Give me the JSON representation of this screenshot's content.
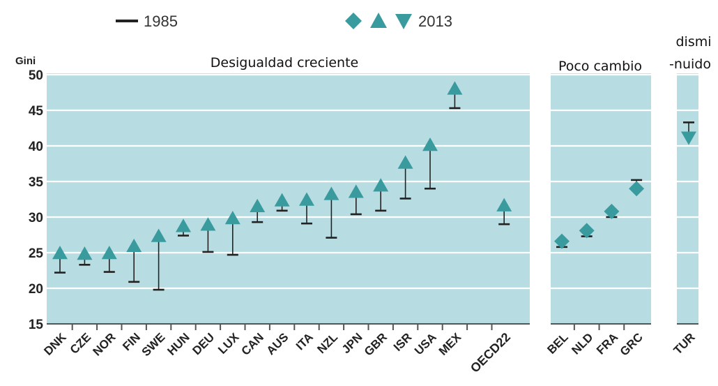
{
  "legend": {
    "label_1985": "1985",
    "label_2013": "2013",
    "marker_color": "#3a9b9f",
    "line_color": "#222222"
  },
  "chart_data": {
    "type": "scatter",
    "ylabel": "Gini",
    "ylim": [
      15,
      50
    ],
    "yticks": [
      15,
      20,
      25,
      30,
      35,
      40,
      45,
      50
    ],
    "panel_color": "#b7dde2",
    "grid": true,
    "series_names": [
      "1985",
      "2013"
    ],
    "panels": [
      {
        "title": "Desigualdad creciente",
        "countries": [
          {
            "code": "DNK",
            "v1985": 22.2,
            "v2013": 24.9,
            "marker": "up"
          },
          {
            "code": "CZE",
            "v1985": 23.3,
            "v2013": 24.8,
            "marker": "up"
          },
          {
            "code": "NOR",
            "v1985": 22.3,
            "v2013": 24.9,
            "marker": "up"
          },
          {
            "code": "FIN",
            "v1985": 20.9,
            "v2013": 25.9,
            "marker": "up"
          },
          {
            "code": "SWE",
            "v1985": 19.8,
            "v2013": 27.3,
            "marker": "up"
          },
          {
            "code": "HUN",
            "v1985": 27.4,
            "v2013": 28.7,
            "marker": "up"
          },
          {
            "code": "DEU",
            "v1985": 25.1,
            "v2013": 28.9,
            "marker": "up"
          },
          {
            "code": "LUX",
            "v1985": 24.7,
            "v2013": 29.8,
            "marker": "up"
          },
          {
            "code": "CAN",
            "v1985": 29.3,
            "v2013": 31.5,
            "marker": "up"
          },
          {
            "code": "AUS",
            "v1985": 30.9,
            "v2013": 32.3,
            "marker": "up"
          },
          {
            "code": "ITA",
            "v1985": 29.1,
            "v2013": 32.4,
            "marker": "up"
          },
          {
            "code": "NZL",
            "v1985": 27.1,
            "v2013": 33.2,
            "marker": "up"
          },
          {
            "code": "JPN",
            "v1985": 30.4,
            "v2013": 33.5,
            "marker": "up"
          },
          {
            "code": "GBR",
            "v1985": 30.9,
            "v2013": 34.4,
            "marker": "up"
          },
          {
            "code": "ISR",
            "v1985": 32.6,
            "v2013": 37.6,
            "marker": "up"
          },
          {
            "code": "USA",
            "v1985": 34.0,
            "v2013": 40.1,
            "marker": "up"
          },
          {
            "code": "MEX",
            "v1985": 45.3,
            "v2013": 48.0,
            "marker": "up"
          },
          {
            "code": "",
            "v1985": null,
            "v2013": null,
            "marker": "none"
          },
          {
            "code": "OECD22",
            "v1985": 29.0,
            "v2013": 31.6,
            "marker": "up",
            "bold": true
          }
        ]
      },
      {
        "title": "Poco cambio",
        "countries": [
          {
            "code": "BEL",
            "v1985": 25.8,
            "v2013": 26.6,
            "marker": "diamond"
          },
          {
            "code": "NLD",
            "v1985": 27.3,
            "v2013": 28.1,
            "marker": "diamond"
          },
          {
            "code": "FRA",
            "v1985": 30.0,
            "v2013": 30.8,
            "marker": "diamond"
          },
          {
            "code": "GRC",
            "v1985": 35.2,
            "v2013": 34.0,
            "marker": "diamond"
          }
        ]
      },
      {
        "title": "dismi -nuido",
        "title_lines": [
          "dismi",
          "-nuido"
        ],
        "countries": [
          {
            "code": "TUR",
            "v1985": 43.3,
            "v2013": 41.2,
            "marker": "down"
          }
        ]
      }
    ]
  }
}
